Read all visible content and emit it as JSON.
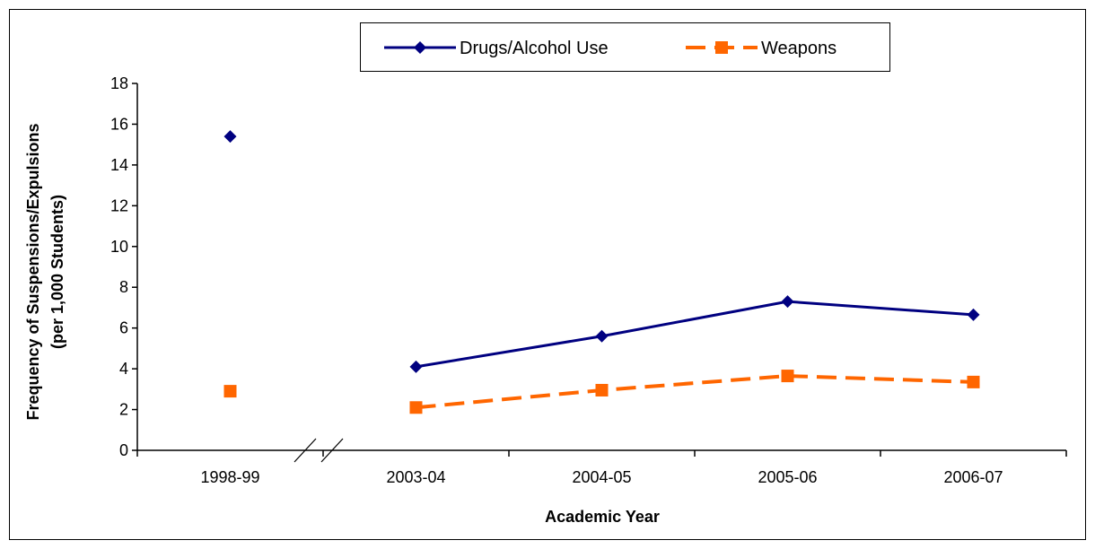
{
  "chart_data": {
    "type": "line",
    "title": "",
    "xlabel": "Academic Year",
    "ylabel": [
      "Frequency of Suspensions/Expulsions",
      "(per 1,000 Students)"
    ],
    "categories": [
      "1998-99",
      "2003-04",
      "2004-05",
      "2005-06",
      "2006-07"
    ],
    "ylim": [
      0,
      18
    ],
    "yticks": [
      0,
      2,
      4,
      6,
      8,
      10,
      12,
      14,
      16,
      18
    ],
    "axis_break_after": "1998-99",
    "grid": false,
    "legend_position": "top",
    "series": [
      {
        "name": "Drugs/Alcohol Use",
        "values": [
          15.4,
          4.1,
          5.6,
          7.3,
          6.65
        ],
        "color": "#000080",
        "marker": "diamond",
        "line_style": "solid"
      },
      {
        "name": "Weapons",
        "values": [
          2.9,
          2.1,
          2.95,
          3.65,
          3.35
        ],
        "color": "#FF6600",
        "marker": "square",
        "line_style": "dashed"
      }
    ]
  }
}
